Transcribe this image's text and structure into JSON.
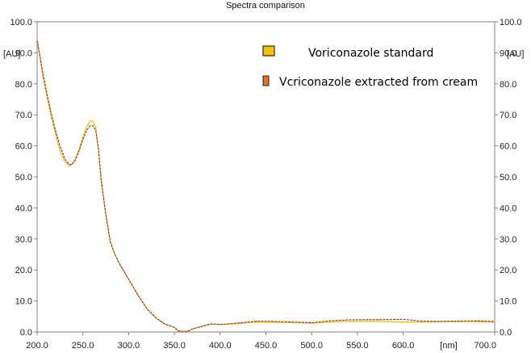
{
  "chart_data": {
    "type": "line",
    "title": "Spectra comparison",
    "xlabel": "[nm]",
    "ylabel_left": "[AU]",
    "ylabel_right": "[AU]",
    "xlim": [
      200,
      700
    ],
    "ylim": [
      0,
      100
    ],
    "x_ticks": [
      "200.0",
      "250.0",
      "300.0",
      "350.0",
      "400.0",
      "450.0",
      "500.0",
      "550.0",
      "600.0",
      "700.0"
    ],
    "x_tick_values": [
      200,
      250,
      300,
      350,
      400,
      450,
      500,
      550,
      600,
      700
    ],
    "y_ticks": [
      "0.0",
      "10.0",
      "20.0",
      "30.0",
      "40.0",
      "50.0",
      "60.0",
      "70.0",
      "80.0",
      "90.0",
      "100.0"
    ],
    "grid": false,
    "legend_position": "top-right",
    "series": [
      {
        "name": "Voriconazole standard",
        "color": "#f5c400",
        "x": [
          200,
          203,
          206,
          210,
          215,
          220,
          225,
          230,
          235,
          238,
          242,
          246,
          250,
          254,
          258,
          261,
          264,
          267,
          270,
          275,
          280,
          285,
          290,
          300,
          310,
          320,
          330,
          340,
          350,
          354,
          358,
          362,
          366,
          370,
          380,
          390,
          400,
          420,
          440,
          460,
          480,
          500,
          520,
          540,
          560,
          580,
          600,
          620,
          640,
          660,
          680,
          700
        ],
        "y": [
          94,
          89,
          83,
          77,
          70,
          64,
          58.5,
          55,
          53.5,
          54,
          56,
          59,
          63,
          66,
          68,
          68,
          66,
          59,
          49,
          38,
          29,
          25,
          22,
          17,
          12,
          7.5,
          4.5,
          2.5,
          1.5,
          0.4,
          0.2,
          0.2,
          0.4,
          1,
          1.8,
          2.6,
          2.4,
          2.7,
          3.2,
          3.1,
          3,
          2.8,
          3.2,
          3.4,
          3.5,
          3.4,
          3.2,
          3.2,
          3.3,
          3.4,
          3.3,
          3.2
        ]
      },
      {
        "name": "Vcriconazole extracted from cream",
        "color": "#e0702a",
        "x": [
          200,
          203,
          206,
          210,
          215,
          220,
          225,
          230,
          235,
          238,
          242,
          246,
          250,
          254,
          258,
          261,
          264,
          267,
          270,
          275,
          280,
          285,
          290,
          300,
          310,
          320,
          330,
          340,
          350,
          354,
          358,
          362,
          366,
          370,
          380,
          390,
          400,
          420,
          440,
          460,
          480,
          500,
          520,
          540,
          560,
          580,
          600,
          620,
          640,
          660,
          680,
          700
        ],
        "y": [
          94,
          89,
          84,
          78,
          71,
          65,
          60,
          56,
          54,
          54,
          55.5,
          58.5,
          62,
          65,
          66.5,
          66.5,
          65,
          59,
          49,
          38,
          29,
          25,
          22,
          17,
          12,
          7.5,
          4.5,
          2.5,
          1.5,
          0.4,
          0.2,
          0.2,
          0.4,
          1,
          1.8,
          2.6,
          2.4,
          2.9,
          3.5,
          3.4,
          3.2,
          3,
          3.6,
          3.9,
          4,
          4,
          4.1,
          3.5,
          3.4,
          3.5,
          3.6,
          3.4
        ]
      }
    ]
  }
}
